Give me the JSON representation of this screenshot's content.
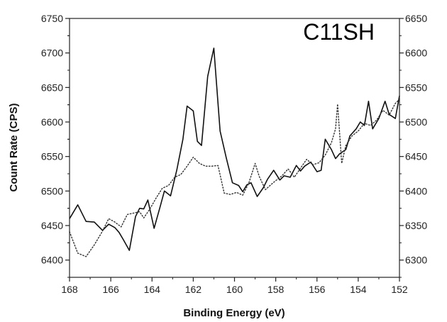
{
  "chart_data": {
    "type": "line",
    "title": "",
    "annotation": "C11SH",
    "xlabel": "Binding Energy (eV)",
    "ylabel": "Count Rate (CPS)",
    "xlim": [
      168,
      152
    ],
    "xticks": [
      168,
      166,
      164,
      162,
      160,
      158,
      156,
      154,
      152
    ],
    "ylim_left": [
      6375,
      6750
    ],
    "yticks_left": [
      6400,
      6450,
      6500,
      6550,
      6600,
      6650,
      6700,
      6750
    ],
    "ylim_right": [
      6275,
      6650
    ],
    "yticks_right": [
      6300,
      6350,
      6400,
      6450,
      6500,
      6550,
      6600,
      6650
    ],
    "grid": false,
    "legend": "none",
    "series": [
      {
        "style": "solid",
        "axis": "left",
        "color": "#111111",
        "x": [
          168.0,
          167.6,
          167.2,
          166.8,
          166.4,
          166.1,
          165.8,
          165.6,
          165.4,
          165.1,
          164.8,
          164.6,
          164.4,
          164.2,
          163.9,
          163.6,
          163.4,
          163.1,
          162.8,
          162.5,
          162.3,
          162.0,
          161.8,
          161.6,
          161.3,
          161.0,
          160.7,
          160.4,
          160.1,
          159.8,
          159.6,
          159.4,
          159.2,
          158.9,
          158.6,
          158.4,
          158.1,
          157.8,
          157.6,
          157.3,
          157.0,
          156.8,
          156.6,
          156.3,
          156.0,
          155.8,
          155.6,
          155.3,
          155.1,
          154.9,
          154.6,
          154.4,
          154.1,
          153.9,
          153.7,
          153.5,
          153.3,
          153.0,
          152.7,
          152.5,
          152.2,
          152.0
        ],
        "y": [
          6460,
          6480,
          6456,
          6455,
          6443,
          6452,
          6447,
          6440,
          6430,
          6414,
          6463,
          6475,
          6474,
          6487,
          6446,
          6478,
          6500,
          6493,
          6530,
          6575,
          6623,
          6616,
          6572,
          6566,
          6666,
          6707,
          6587,
          6548,
          6512,
          6508,
          6499,
          6509,
          6512,
          6492,
          6505,
          6517,
          6530,
          6516,
          6522,
          6520,
          6537,
          6529,
          6536,
          6542,
          6528,
          6530,
          6575,
          6560,
          6547,
          6554,
          6560,
          6580,
          6590,
          6600,
          6595,
          6630,
          6590,
          6605,
          6630,
          6611,
          6605,
          6638
        ]
      },
      {
        "style": "dotted",
        "axis": "right",
        "color": "#333333",
        "x": [
          168.0,
          167.6,
          167.2,
          166.8,
          166.4,
          166.1,
          165.8,
          165.5,
          165.2,
          164.9,
          164.6,
          164.4,
          164.1,
          163.8,
          163.5,
          163.2,
          162.9,
          162.6,
          162.3,
          162.0,
          161.7,
          161.4,
          161.1,
          160.8,
          160.5,
          160.2,
          159.9,
          159.6,
          159.3,
          159.0,
          158.8,
          158.5,
          158.2,
          158.0,
          157.7,
          157.4,
          157.1,
          156.8,
          156.5,
          156.2,
          155.9,
          155.6,
          155.3,
          155.1,
          155.0,
          154.8,
          154.6,
          154.3,
          154.0,
          153.7,
          153.4,
          153.1,
          152.8,
          152.5,
          152.2,
          152.0
        ],
        "y": [
          6341,
          6310,
          6305,
          6322,
          6342,
          6360,
          6355,
          6348,
          6366,
          6368,
          6370,
          6361,
          6374,
          6390,
          6404,
          6408,
          6420,
          6424,
          6436,
          6449,
          6440,
          6436,
          6436,
          6437,
          6397,
          6395,
          6398,
          6394,
          6412,
          6440,
          6421,
          6402,
          6410,
          6415,
          6422,
          6432,
          6420,
          6433,
          6446,
          6438,
          6441,
          6452,
          6470,
          6490,
          6526,
          6440,
          6466,
          6480,
          6487,
          6498,
          6495,
          6503,
          6517,
          6510,
          6527,
          6533
        ]
      }
    ]
  }
}
